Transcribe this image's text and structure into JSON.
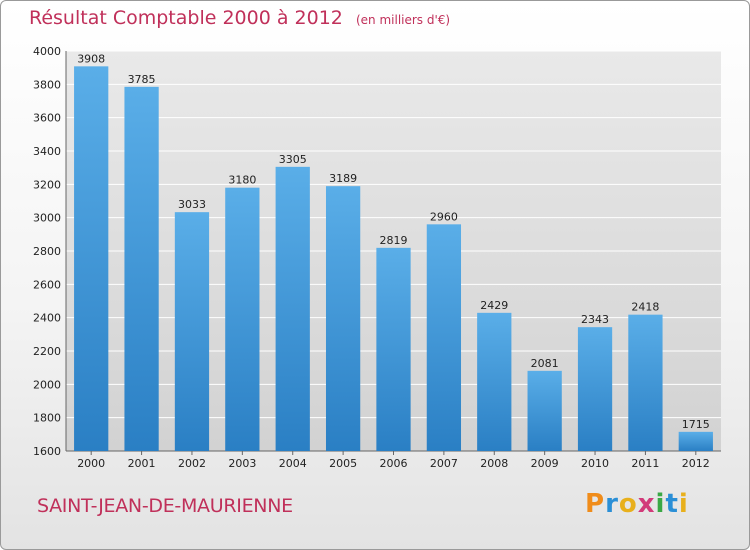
{
  "chart_data": {
    "type": "bar",
    "title": "Résultat Comptable 2000 à 2012",
    "subtitle": "(en milliers d'€)",
    "categories": [
      "2000",
      "2001",
      "2002",
      "2003",
      "2004",
      "2005",
      "2006",
      "2007",
      "2008",
      "2009",
      "2010",
      "2011",
      "2012"
    ],
    "values": [
      3908,
      3785,
      3033,
      3180,
      3305,
      3189,
      2819,
      2960,
      2429,
      2081,
      2343,
      2418,
      1715
    ],
    "ylim": [
      1600,
      4000
    ],
    "yticks": [
      1600,
      1800,
      2000,
      2200,
      2400,
      2600,
      2800,
      3000,
      3200,
      3400,
      3600,
      3800,
      4000
    ],
    "xlabel": "",
    "ylabel": "",
    "grid": true,
    "bar_color_light": "#5aaee8",
    "bar_color_dark": "#2a7fc4"
  },
  "footer": {
    "commune": "SAINT-JEAN-DE-MAURIENNE",
    "logo_letters": [
      "P",
      "r",
      "o",
      "x",
      "i",
      "t",
      "i"
    ],
    "logo_colors": [
      "#f08c1a",
      "#2a8fd6",
      "#e8b01c",
      "#d23a7a",
      "#3aa845",
      "#2a8fd6",
      "#e8b01c"
    ]
  },
  "colors": {
    "title": "#c0305a",
    "grid": "#ffffff",
    "plot_bg": "#dcdcdc"
  }
}
